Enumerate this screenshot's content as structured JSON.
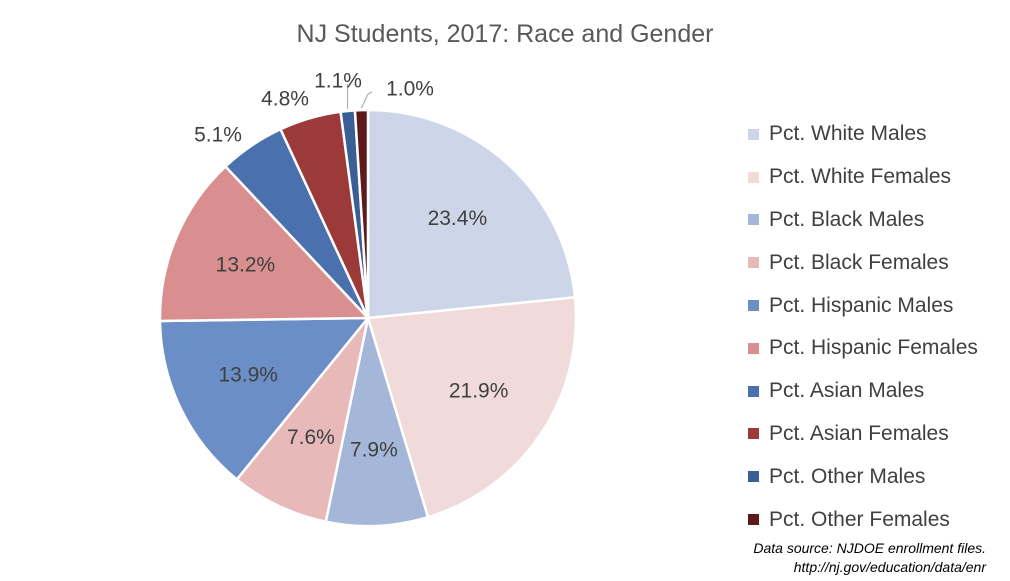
{
  "chart_data": {
    "type": "pie",
    "title": "NJ Students, 2017: Race and Gender",
    "categories": [
      "Pct. White Males",
      "Pct. White Females",
      "Pct. Black Males",
      "Pct. Black Females",
      "Pct. Hispanic Males",
      "Pct. Hispanic Females",
      "Pct. Asian Males",
      "Pct. Asian Females",
      "Pct. Other Males",
      "Pct. Other Females"
    ],
    "values": [
      23.4,
      21.9,
      7.9,
      7.6,
      13.9,
      13.2,
      5.1,
      4.8,
      1.1,
      1.0
    ],
    "data_labels": [
      "23.4%",
      "21.9%",
      "7.9%",
      "7.6%",
      "13.9%",
      "13.2%",
      "5.1%",
      "4.8%",
      "1.1%",
      "1.0%"
    ],
    "colors": [
      "#cdd6e8",
      "#f0dada",
      "#a5b7d9",
      "#e8b9b9",
      "#6b8ec6",
      "#d98f8f",
      "#4a70ad",
      "#9c3a3a",
      "#3a5f95",
      "#5e1a1a"
    ],
    "legend_position": "right",
    "start_angle": "top, clockwise"
  },
  "source_note": {
    "line1": "Data source: NJDOE enrollment files.",
    "line2": "http://nj.gov/education/data/enr"
  }
}
